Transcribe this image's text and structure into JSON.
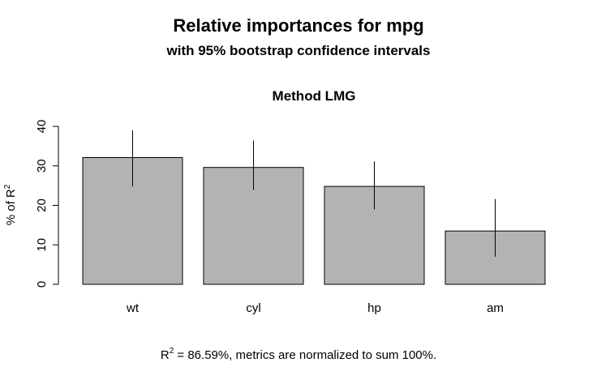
{
  "title": "Relative importances for mpg",
  "subtitle": "with 95% bootstrap confidence intervals",
  "chart_data": {
    "type": "bar",
    "panel_title": "Method LMG",
    "categories": [
      "wt",
      "cyl",
      "hp",
      "am"
    ],
    "values": [
      32.1,
      29.6,
      24.8,
      13.5
    ],
    "ci_lower": [
      24.8,
      23.9,
      19.0,
      7.0
    ],
    "ci_upper": [
      39.0,
      36.4,
      31.1,
      21.6
    ],
    "ylabel_base": "% of R",
    "ylabel_sup": "2",
    "yticks": [
      "0",
      "10",
      "20",
      "30",
      "40"
    ],
    "ylim": [
      0,
      40
    ],
    "bar_color": "#b3b3b3",
    "grid": false
  },
  "footnote": {
    "prefix": "R",
    "sup": "2",
    "text": " = 86.59%, metrics are normalized to sum 100%."
  }
}
